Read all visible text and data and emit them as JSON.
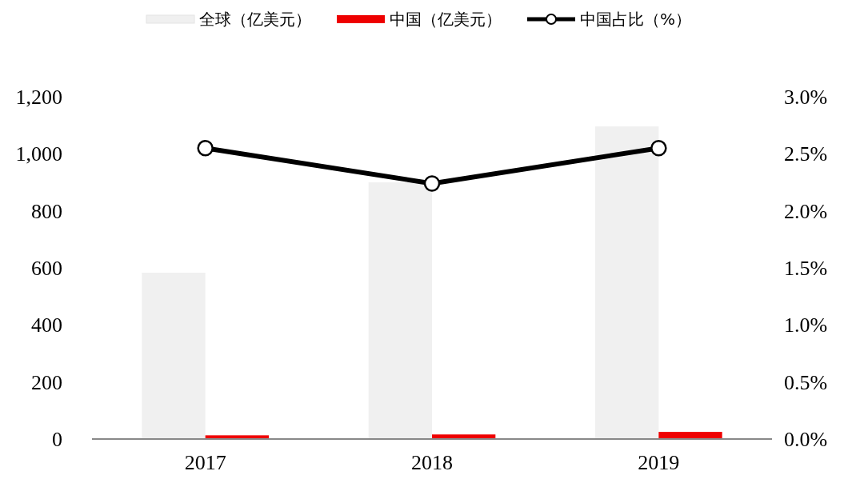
{
  "chart_data": {
    "type": "bar",
    "categories": [
      "2017",
      "2018",
      "2019"
    ],
    "series": [
      {
        "name": "全球（亿美元）",
        "color": "#f0f0f0",
        "values": [
          583,
          900,
          1096
        ]
      },
      {
        "name": "中国（亿美元）",
        "color": "#ee0000",
        "values": [
          13,
          16,
          25
        ]
      },
      {
        "name": "中国占比（%）",
        "type": "line",
        "axis": "y2",
        "color": "#000000",
        "marker": "circle",
        "values": [
          2.55,
          2.24,
          2.55
        ]
      }
    ],
    "ylim": [
      0,
      1200
    ],
    "yticks": [
      {
        "value": 0,
        "label": "0"
      },
      {
        "value": 200,
        "label": "200"
      },
      {
        "value": 400,
        "label": "400"
      },
      {
        "value": 600,
        "label": "600"
      },
      {
        "value": 800,
        "label": "800"
      },
      {
        "value": 1000,
        "label": "1,000"
      },
      {
        "value": 1200,
        "label": "1,200"
      }
    ],
    "y2lim": [
      0,
      3
    ],
    "y2ticks": [
      {
        "value": 0,
        "label": "0.0%"
      },
      {
        "value": 0.5,
        "label": "0.5%"
      },
      {
        "value": 1,
        "label": "1.0%"
      },
      {
        "value": 1.5,
        "label": "1.5%"
      },
      {
        "value": 2,
        "label": "2.0%"
      },
      {
        "value": 2.5,
        "label": "2.5%"
      },
      {
        "value": 3,
        "label": "3.0%"
      }
    ],
    "legend": "top",
    "grid": false
  }
}
